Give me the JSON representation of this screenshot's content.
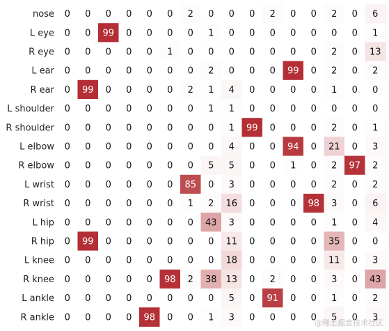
{
  "chart_data": {
    "type": "heatmap",
    "rows": [
      "nose",
      "L eye",
      "R eye",
      "L ear",
      "R ear",
      "L shoulder",
      "R shoulder",
      "L elbow",
      "R elbow",
      "L wrist",
      "R wrist",
      "L hip",
      "R hip",
      "L knee",
      "R knee",
      "L ankle",
      "R ankle"
    ],
    "values": [
      [
        0,
        0,
        0,
        0,
        0,
        0,
        2,
        0,
        0,
        0,
        2,
        0,
        0,
        2,
        0,
        6
      ],
      [
        0,
        0,
        99,
        0,
        0,
        0,
        0,
        1,
        0,
        0,
        0,
        0,
        0,
        0,
        0,
        1
      ],
      [
        0,
        0,
        0,
        0,
        0,
        1,
        0,
        0,
        0,
        0,
        0,
        0,
        0,
        2,
        0,
        13
      ],
      [
        0,
        0,
        0,
        0,
        0,
        0,
        0,
        2,
        0,
        0,
        0,
        99,
        0,
        2,
        0,
        2
      ],
      [
        0,
        99,
        0,
        0,
        0,
        0,
        2,
        1,
        4,
        0,
        0,
        0,
        0,
        1,
        0,
        0
      ],
      [
        0,
        0,
        0,
        0,
        0,
        0,
        0,
        1,
        1,
        0,
        0,
        0,
        0,
        0,
        0,
        0
      ],
      [
        0,
        0,
        0,
        0,
        0,
        0,
        0,
        0,
        1,
        99,
        0,
        0,
        0,
        2,
        0,
        1
      ],
      [
        0,
        0,
        0,
        0,
        0,
        0,
        0,
        0,
        4,
        0,
        0,
        94,
        0,
        21,
        0,
        3
      ],
      [
        0,
        0,
        0,
        0,
        0,
        0,
        0,
        5,
        5,
        0,
        0,
        1,
        0,
        2,
        97,
        2
      ],
      [
        0,
        0,
        0,
        0,
        0,
        0,
        85,
        0,
        3,
        0,
        0,
        0,
        0,
        2,
        0,
        2
      ],
      [
        0,
        0,
        0,
        0,
        0,
        0,
        1,
        2,
        16,
        0,
        0,
        0,
        98,
        3,
        0,
        6
      ],
      [
        0,
        0,
        0,
        0,
        0,
        0,
        0,
        43,
        3,
        0,
        0,
        0,
        0,
        1,
        0,
        4
      ],
      [
        0,
        99,
        0,
        0,
        0,
        0,
        0,
        0,
        11,
        0,
        0,
        0,
        0,
        35,
        0,
        0
      ],
      [
        0,
        0,
        0,
        0,
        0,
        0,
        0,
        0,
        18,
        0,
        0,
        0,
        0,
        11,
        0,
        3
      ],
      [
        0,
        0,
        0,
        0,
        0,
        98,
        2,
        38,
        13,
        0,
        2,
        0,
        0,
        3,
        0,
        43
      ],
      [
        0,
        0,
        0,
        0,
        0,
        0,
        0,
        0,
        5,
        0,
        91,
        0,
        0,
        1,
        0,
        2
      ],
      [
        0,
        0,
        0,
        0,
        98,
        0,
        0,
        1,
        3,
        0,
        0,
        0,
        0,
        5,
        0,
        3
      ]
    ],
    "color_scale": {
      "min": 0,
      "max": 100,
      "low_color": "#ffffff",
      "high_color": "#b22d33"
    }
  },
  "watermark": "@稀土掘金技术社区"
}
